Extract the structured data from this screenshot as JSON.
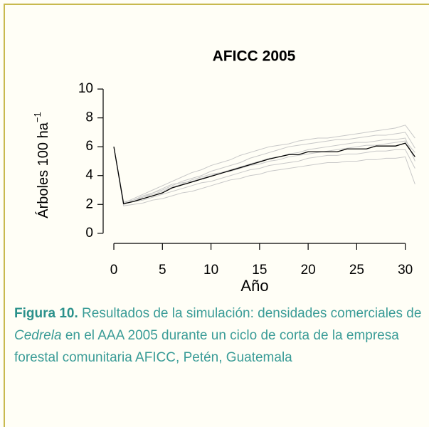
{
  "chart_data": {
    "type": "line",
    "title": "AFICC 2005",
    "ylabel": "Árboles 100 ha",
    "ylabel_sup": "−1",
    "xlabel": "Año",
    "x": [
      0,
      1,
      2,
      3,
      4,
      5,
      6,
      7,
      8,
      9,
      10,
      11,
      12,
      13,
      14,
      15,
      16,
      17,
      18,
      19,
      20,
      21,
      22,
      23,
      24,
      25,
      26,
      27,
      28,
      29,
      30,
      31
    ],
    "series": [
      {
        "color": "#c8c8c8",
        "values": [
          6,
          2.1,
          2.4,
          2.7,
          3.0,
          3.3,
          3.6,
          3.9,
          4.2,
          4.4,
          4.7,
          4.9,
          5.1,
          5.4,
          5.6,
          5.8,
          6.0,
          6.1,
          6.2,
          6.4,
          6.5,
          6.6,
          6.6,
          6.7,
          6.8,
          6.9,
          7.0,
          7.1,
          7.2,
          7.3,
          7.5,
          6.6
        ]
      },
      {
        "color": "#c8c8c8",
        "values": [
          6,
          1.9,
          2.0,
          2.1,
          2.3,
          2.4,
          2.6,
          2.8,
          2.9,
          3.1,
          3.3,
          3.5,
          3.7,
          3.8,
          4.0,
          4.1,
          4.3,
          4.4,
          4.5,
          4.6,
          4.7,
          4.8,
          4.9,
          4.9,
          5.0,
          5.0,
          5.1,
          5.1,
          5.2,
          5.2,
          5.3,
          3.4
        ]
      },
      {
        "color": "#c8c8c8",
        "values": [
          6,
          2.0,
          2.3,
          2.5,
          2.8,
          3.0,
          3.3,
          3.6,
          3.8,
          4.0,
          4.3,
          4.5,
          4.7,
          4.9,
          5.2,
          5.4,
          5.6,
          5.8,
          6.0,
          6.1,
          6.2,
          6.3,
          6.4,
          6.5,
          6.5,
          6.6,
          6.7,
          6.8,
          6.8,
          6.9,
          7.0,
          5.9
        ]
      },
      {
        "color": "#c8c8c8",
        "values": [
          6,
          2.1,
          2.2,
          2.3,
          2.5,
          2.7,
          2.9,
          3.1,
          3.3,
          3.5,
          3.6,
          3.8,
          4.0,
          4.2,
          4.4,
          4.5,
          4.7,
          4.8,
          4.9,
          5.0,
          5.2,
          5.3,
          5.4,
          5.4,
          5.5,
          5.5,
          5.6,
          5.7,
          5.7,
          5.8,
          5.8,
          4.5
        ]
      },
      {
        "color": "#c8c8c8",
        "values": [
          6,
          2.0,
          2.2,
          2.5,
          2.7,
          2.9,
          3.2,
          3.4,
          3.7,
          3.9,
          4.1,
          4.2,
          4.4,
          4.6,
          4.8,
          5.0,
          5.2,
          5.3,
          5.5,
          5.6,
          5.8,
          5.9,
          6.0,
          6.1,
          6.2,
          6.3,
          6.3,
          6.4,
          6.5,
          6.5,
          6.6,
          5.0
        ]
      },
      {
        "color": "#c8c8c8",
        "values": [
          6,
          2.2,
          2.3,
          2.6,
          2.8,
          3.1,
          3.4,
          3.5,
          3.6,
          3.8,
          4.0,
          4.2,
          4.3,
          4.5,
          4.7,
          4.8,
          5.0,
          5.1,
          5.3,
          5.4,
          5.5,
          5.6,
          5.7,
          5.8,
          5.9,
          6.0,
          6.1,
          6.1,
          6.2,
          6.3,
          6.4,
          5.6
        ]
      },
      {
        "color": "#000000",
        "values": [
          6.0,
          2.05,
          2.2,
          2.4,
          2.6,
          2.8,
          3.15,
          3.35,
          3.55,
          3.75,
          3.95,
          4.15,
          4.35,
          4.55,
          4.75,
          4.95,
          5.15,
          5.3,
          5.45,
          5.45,
          5.65,
          5.65,
          5.65,
          5.65,
          5.85,
          5.85,
          5.85,
          6.05,
          6.05,
          6.05,
          6.25,
          5.3
        ]
      }
    ],
    "xlim": [
      -1.1,
      32
    ],
    "ylim": [
      -0.7,
      10.4
    ],
    "xticks": [
      0,
      5,
      10,
      15,
      20,
      25,
      30
    ],
    "yticks": [
      0,
      2,
      4,
      6,
      8,
      10
    ],
    "grid": false
  },
  "caption": {
    "label": "Figura 10.",
    "text_before": " Resultados de la simulación: densidades comerciales de ",
    "italic": "Cedrela",
    "text_after": " en el AAA 2005 durante un ciclo de corta de la empresa forestal comunitaria AFICC, Petén, Guatemala"
  }
}
